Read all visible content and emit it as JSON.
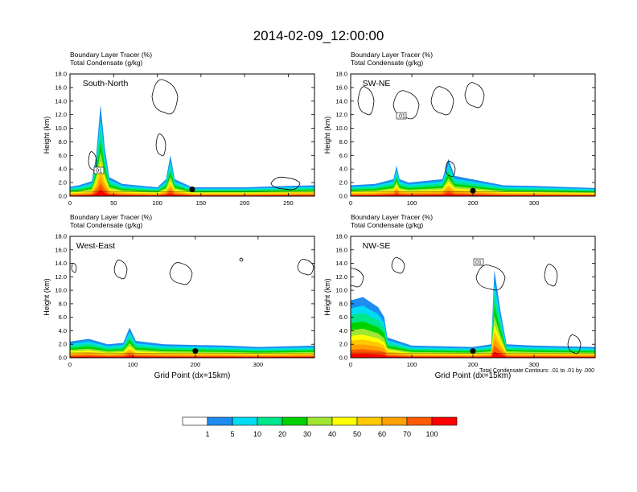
{
  "title": "2014-02-09_12:00:00",
  "header_line1": "Boundary Layer Tracer   (%)",
  "header_line2": "Total Condensate   (g/kg)",
  "contour_note": "Total Condensate Contours: .01 to .01 by .000",
  "colorbar": {
    "labels": [
      "1",
      "5",
      "10",
      "20",
      "30",
      "40",
      "50",
      "60",
      "70",
      "100"
    ],
    "colors": [
      "#ffffff",
      "#1e8cf0",
      "#00dcf5",
      "#00e68c",
      "#00d200",
      "#a0e632",
      "#ffff00",
      "#ffc800",
      "#ffa000",
      "#ff5a00",
      "#ff0000"
    ]
  },
  "chart_data": [
    {
      "type": "heatmap",
      "panel": "South-North",
      "ylabel": "Height (km)",
      "xlabel": "",
      "xlim": [
        0,
        280
      ],
      "ylim": [
        0,
        18
      ],
      "xticks": [
        "0",
        "50",
        "100",
        "150",
        "200",
        "250"
      ],
      "yticks": [
        "0.0",
        "2.0",
        "4.0",
        "6.0",
        "8.0",
        "10.0",
        "12.0",
        "14.0",
        "16.0",
        "18.0"
      ],
      "marker": {
        "x": 140,
        "y": 1.0
      },
      "contour_label": "01",
      "tracer_profile": [
        {
          "x": 0,
          "top": 1.4
        },
        {
          "x": 10,
          "top": 1.6
        },
        {
          "x": 25,
          "top": 2.2
        },
        {
          "x": 30,
          "top": 6.0
        },
        {
          "x": 35,
          "top": 13.5
        },
        {
          "x": 40,
          "top": 7.0
        },
        {
          "x": 45,
          "top": 2.8
        },
        {
          "x": 60,
          "top": 1.8
        },
        {
          "x": 100,
          "top": 1.3
        },
        {
          "x": 110,
          "top": 2.5
        },
        {
          "x": 115,
          "top": 6.0
        },
        {
          "x": 120,
          "top": 2.5
        },
        {
          "x": 140,
          "top": 1.3
        },
        {
          "x": 200,
          "top": 1.3
        },
        {
          "x": 250,
          "top": 1.5
        },
        {
          "x": 280,
          "top": 1.6
        }
      ]
    },
    {
      "type": "heatmap",
      "panel": "SW-NE",
      "ylabel": "Height (km)",
      "xlabel": "",
      "xlim": [
        0,
        400
      ],
      "ylim": [
        0,
        18
      ],
      "xticks": [
        "0",
        "100",
        "200",
        "300"
      ],
      "yticks": [
        "0.0",
        "2.0",
        "4.0",
        "6.0",
        "8.0",
        "10.0",
        "12.0",
        "14.0",
        "16.0",
        "18.0"
      ],
      "marker": {
        "x": 200,
        "y": 0.8
      },
      "contour_label": ".01",
      "tracer_profile": [
        {
          "x": 0,
          "top": 1.6
        },
        {
          "x": 40,
          "top": 1.8
        },
        {
          "x": 70,
          "top": 2.5
        },
        {
          "x": 75,
          "top": 4.5
        },
        {
          "x": 80,
          "top": 2.5
        },
        {
          "x": 95,
          "top": 2.0
        },
        {
          "x": 150,
          "top": 2.5
        },
        {
          "x": 160,
          "top": 5.5
        },
        {
          "x": 170,
          "top": 3.0
        },
        {
          "x": 250,
          "top": 1.6
        },
        {
          "x": 300,
          "top": 1.5
        },
        {
          "x": 400,
          "top": 1.2
        }
      ]
    },
    {
      "type": "heatmap",
      "panel": "West-East",
      "ylabel": "Height (km)",
      "xlabel": "Grid Point (dx=15km)",
      "xlim": [
        0,
        390
      ],
      "ylim": [
        0,
        18
      ],
      "xticks": [
        "0",
        "100",
        "200",
        "300"
      ],
      "yticks": [
        "0.0",
        "2.0",
        "4.0",
        "6.0",
        "8.0",
        "10.0",
        "12.0",
        "14.0",
        "16.0",
        "18.0"
      ],
      "marker": {
        "x": 200,
        "y": 1.0
      },
      "tracer_profile": [
        {
          "x": 0,
          "top": 2.4
        },
        {
          "x": 30,
          "top": 2.8
        },
        {
          "x": 60,
          "top": 2.0
        },
        {
          "x": 85,
          "top": 2.2
        },
        {
          "x": 95,
          "top": 4.5
        },
        {
          "x": 105,
          "top": 2.5
        },
        {
          "x": 150,
          "top": 2.0
        },
        {
          "x": 250,
          "top": 1.8
        },
        {
          "x": 300,
          "top": 1.6
        },
        {
          "x": 390,
          "top": 1.8
        }
      ]
    },
    {
      "type": "heatmap",
      "panel": "NW-SE",
      "ylabel": "Height (km)",
      "xlabel": "Grid Point (dx=15km)",
      "xlim": [
        0,
        400
      ],
      "ylim": [
        0,
        18
      ],
      "xticks": [
        "0",
        "100",
        "200",
        "300"
      ],
      "yticks": [
        "0.0",
        "2.0",
        "4.0",
        "6.0",
        "8.0",
        "10.0",
        "12.0",
        "14.0",
        "16.0",
        "18.0"
      ],
      "marker": {
        "x": 200,
        "y": 1.0
      },
      "contour_label": "01",
      "tracer_profile": [
        {
          "x": 0,
          "top": 8.5
        },
        {
          "x": 20,
          "top": 9.0
        },
        {
          "x": 45,
          "top": 7.5
        },
        {
          "x": 55,
          "top": 6.0
        },
        {
          "x": 60,
          "top": 3.0
        },
        {
          "x": 100,
          "top": 1.8
        },
        {
          "x": 200,
          "top": 1.6
        },
        {
          "x": 230,
          "top": 2.0
        },
        {
          "x": 235,
          "top": 13.0
        },
        {
          "x": 245,
          "top": 7.0
        },
        {
          "x": 255,
          "top": 2.0
        },
        {
          "x": 300,
          "top": 1.8
        },
        {
          "x": 400,
          "top": 1.6
        }
      ]
    }
  ]
}
